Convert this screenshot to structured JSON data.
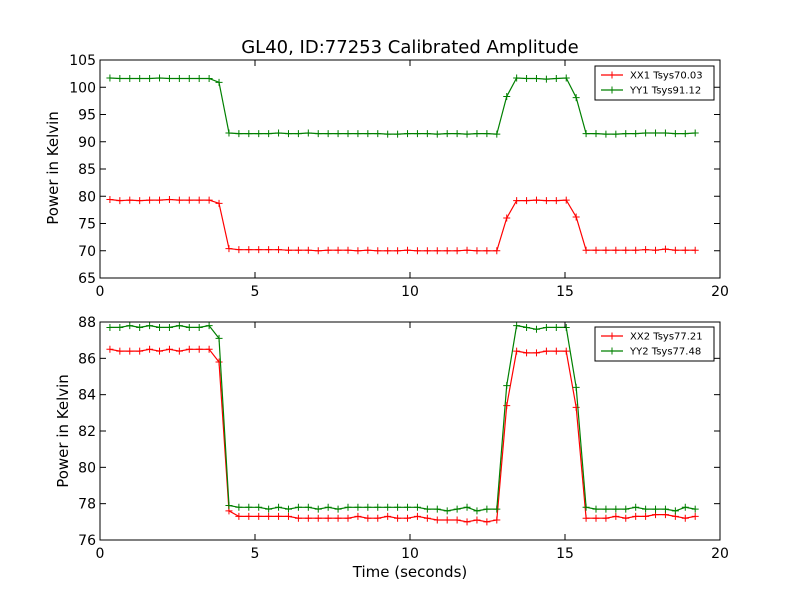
{
  "chart_data": {
    "title": "GL40, ID:77253 Calibrated Amplitude",
    "panels": [
      {
        "type": "line",
        "ylabel": "Power in Kelvin",
        "xlabel": "",
        "xlim": [
          0,
          20
        ],
        "ylim": [
          65,
          105
        ],
        "xticks": [
          0,
          5,
          10,
          15,
          20
        ],
        "yticks": [
          65,
          70,
          75,
          80,
          85,
          90,
          95,
          100,
          105
        ],
        "grid": false,
        "legend_position": "top-right",
        "colors": {
          "XX": "#ff0000",
          "YY": "#008000"
        },
        "x": [
          0.32,
          0.64,
          0.96,
          1.28,
          1.6,
          1.92,
          2.24,
          2.56,
          2.88,
          3.2,
          3.52,
          3.84,
          4.16,
          4.48,
          4.8,
          5.12,
          5.44,
          5.76,
          6.08,
          6.4,
          6.72,
          7.04,
          7.36,
          7.68,
          8.0,
          8.32,
          8.64,
          8.96,
          9.28,
          9.6,
          9.92,
          10.24,
          10.56,
          10.88,
          11.2,
          11.52,
          11.84,
          12.16,
          12.48,
          12.8,
          13.12,
          13.44,
          13.76,
          14.08,
          14.4,
          14.72,
          15.04,
          15.36,
          15.68,
          16.0,
          16.32,
          16.64,
          16.96,
          17.28,
          17.6,
          17.92,
          18.24,
          18.56,
          18.88,
          19.2
        ],
        "series": [
          {
            "name": "XX1 Tsys70.03",
            "color": "#ff0000",
            "values": [
              79.4,
              79.2,
              79.3,
              79.2,
              79.3,
              79.3,
              79.4,
              79.3,
              79.3,
              79.3,
              79.3,
              78.7,
              70.4,
              70.2,
              70.2,
              70.2,
              70.2,
              70.2,
              70.1,
              70.1,
              70.1,
              70.0,
              70.1,
              70.1,
              70.1,
              70.0,
              70.1,
              70.0,
              70.0,
              70.0,
              70.1,
              70.0,
              70.0,
              70.0,
              70.0,
              70.0,
              70.1,
              70.0,
              70.0,
              70.0,
              76.0,
              79.2,
              79.2,
              79.3,
              79.2,
              79.2,
              79.3,
              76.2,
              70.1,
              70.1,
              70.1,
              70.1,
              70.1,
              70.1,
              70.2,
              70.1,
              70.3,
              70.1,
              70.1,
              70.1
            ]
          },
          {
            "name": "YY1 Tsys91.12",
            "color": "#008000",
            "values": [
              101.7,
              101.6,
              101.6,
              101.6,
              101.6,
              101.7,
              101.6,
              101.6,
              101.6,
              101.6,
              101.6,
              100.9,
              91.6,
              91.5,
              91.5,
              91.5,
              91.5,
              91.6,
              91.5,
              91.5,
              91.6,
              91.5,
              91.5,
              91.5,
              91.5,
              91.5,
              91.5,
              91.5,
              91.4,
              91.4,
              91.5,
              91.5,
              91.5,
              91.4,
              91.5,
              91.5,
              91.4,
              91.5,
              91.5,
              91.4,
              98.3,
              101.7,
              101.6,
              101.6,
              101.5,
              101.6,
              101.7,
              98.1,
              91.5,
              91.5,
              91.4,
              91.4,
              91.5,
              91.5,
              91.6,
              91.6,
              91.6,
              91.5,
              91.5,
              91.6
            ]
          }
        ]
      },
      {
        "type": "line",
        "ylabel": "Power in Kelvin",
        "xlabel": "Time (seconds)",
        "xlim": [
          0,
          20
        ],
        "ylim": [
          76,
          88
        ],
        "xticks": [
          0,
          5,
          10,
          15,
          20
        ],
        "yticks": [
          76,
          78,
          80,
          82,
          84,
          86,
          88
        ],
        "grid": false,
        "legend_position": "top-right",
        "x": [
          0.32,
          0.64,
          0.96,
          1.28,
          1.6,
          1.92,
          2.24,
          2.56,
          2.88,
          3.2,
          3.52,
          3.84,
          4.16,
          4.48,
          4.8,
          5.12,
          5.44,
          5.76,
          6.08,
          6.4,
          6.72,
          7.04,
          7.36,
          7.68,
          8.0,
          8.32,
          8.64,
          8.96,
          9.28,
          9.6,
          9.92,
          10.24,
          10.56,
          10.88,
          11.2,
          11.52,
          11.84,
          12.16,
          12.48,
          12.8,
          13.12,
          13.44,
          13.76,
          14.08,
          14.4,
          14.72,
          15.04,
          15.36,
          15.68,
          16.0,
          16.32,
          16.64,
          16.96,
          17.28,
          17.6,
          17.92,
          18.24,
          18.56,
          18.88,
          19.2
        ],
        "series": [
          {
            "name": "XX2 Tsys77.21",
            "color": "#ff0000",
            "values": [
              86.5,
              86.4,
              86.4,
              86.4,
              86.5,
              86.4,
              86.5,
              86.4,
              86.5,
              86.5,
              86.5,
              85.8,
              77.6,
              77.3,
              77.3,
              77.3,
              77.3,
              77.3,
              77.3,
              77.2,
              77.2,
              77.2,
              77.2,
              77.2,
              77.2,
              77.3,
              77.2,
              77.2,
              77.3,
              77.2,
              77.2,
              77.3,
              77.2,
              77.1,
              77.1,
              77.1,
              77.0,
              77.1,
              77.0,
              77.1,
              83.4,
              86.4,
              86.3,
              86.3,
              86.4,
              86.4,
              86.4,
              83.3,
              77.2,
              77.2,
              77.2,
              77.3,
              77.2,
              77.3,
              77.3,
              77.4,
              77.4,
              77.3,
              77.2,
              77.3
            ]
          },
          {
            "name": "YY2 Tsys77.48",
            "color": "#008000",
            "values": [
              87.7,
              87.7,
              87.8,
              87.7,
              87.8,
              87.7,
              87.7,
              87.8,
              87.7,
              87.7,
              87.8,
              87.1,
              77.9,
              77.8,
              77.8,
              77.8,
              77.7,
              77.8,
              77.7,
              77.8,
              77.8,
              77.7,
              77.8,
              77.7,
              77.8,
              77.8,
              77.8,
              77.8,
              77.8,
              77.8,
              77.8,
              77.8,
              77.7,
              77.7,
              77.6,
              77.7,
              77.8,
              77.6,
              77.7,
              77.7,
              84.5,
              87.8,
              87.7,
              87.6,
              87.7,
              87.7,
              87.7,
              84.4,
              77.8,
              77.7,
              77.7,
              77.7,
              77.7,
              77.8,
              77.7,
              77.7,
              77.7,
              77.6,
              77.8,
              77.7
            ]
          }
        ]
      }
    ]
  }
}
